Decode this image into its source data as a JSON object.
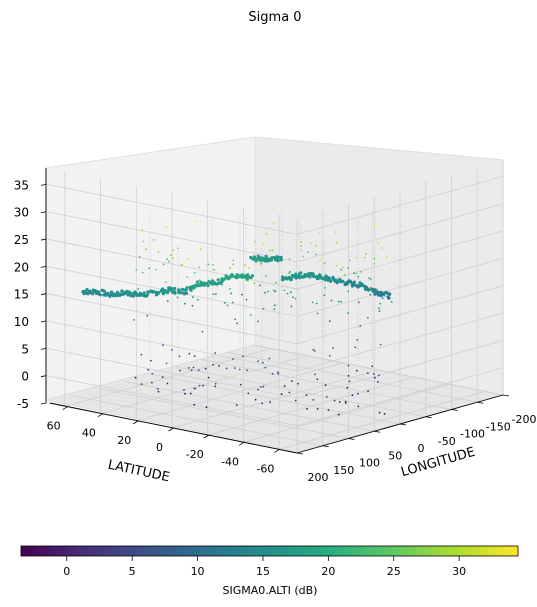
{
  "chart_data": {
    "type": "scatter",
    "projection": "3d",
    "title": "Sigma 0",
    "xlabel": "LONGITUDE",
    "ylabel": "LATITUDE",
    "zlabel": "",
    "xlim": [
      -200,
      200
    ],
    "ylim": [
      -70,
      70
    ],
    "zlim": [
      -5,
      38
    ],
    "x_ticks": [
      -200,
      -150,
      -100,
      -50,
      0,
      50,
      100,
      150,
      200
    ],
    "y_ticks": [
      -60,
      -40,
      -20,
      0,
      20,
      40,
      60
    ],
    "z_ticks": [
      -5,
      0,
      5,
      10,
      15,
      20,
      25,
      30,
      35
    ],
    "grid": true,
    "colormap": "viridis",
    "colorbar": {
      "label": "SIGMA0.ALTI (dB)",
      "orientation": "horizontal",
      "placement": "bottom",
      "range": [
        -3.5,
        34.5
      ],
      "ticks": [
        0,
        5,
        10,
        15,
        20,
        25,
        30
      ]
    },
    "series": [
      {
        "columns": [
          "longitude",
          "latitude",
          "sigma0_dB"
        ],
        "description_points": [
          [
            -160,
            -64,
            14.5
          ],
          [
            -150,
            -52,
            15.2
          ],
          [
            -135,
            -40,
            14.8
          ],
          [
            -120,
            -28,
            16.0
          ],
          [
            -105,
            -18,
            15.5
          ],
          [
            -90,
            -8,
            16.4
          ],
          [
            -75,
            2,
            17.1
          ],
          [
            -60,
            12,
            16.3
          ],
          [
            -48,
            20,
            18.5
          ],
          [
            -35,
            28,
            17.8
          ],
          [
            -20,
            36,
            19.0
          ],
          [
            -5,
            44,
            18.0
          ],
          [
            10,
            52,
            17.5
          ],
          [
            25,
            60,
            16.8
          ],
          [
            40,
            66,
            15.9
          ],
          [
            60,
            64,
            16.5
          ],
          [
            80,
            56,
            15.8
          ],
          [
            100,
            46,
            14.9
          ],
          [
            120,
            36,
            14.2
          ],
          [
            140,
            26,
            13.8
          ],
          [
            160,
            16,
            12.5
          ],
          [
            180,
            6,
            11.6
          ]
        ]
      }
    ]
  }
}
